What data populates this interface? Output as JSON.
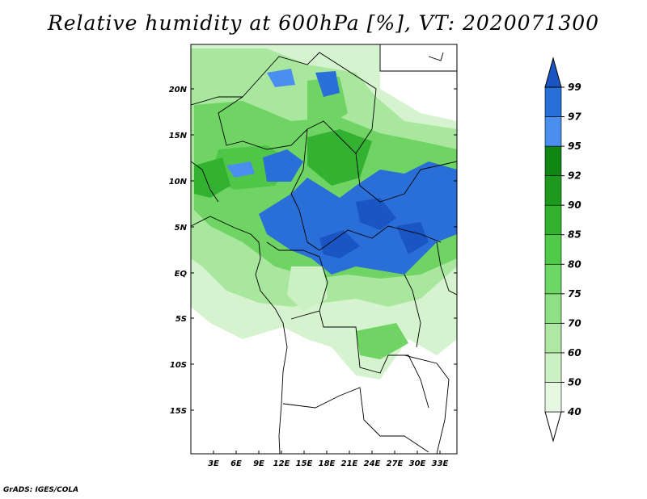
{
  "title": "Relative humidity at 600hPa [%], VT: 2020071300",
  "credit": "GrADS: IGES/COLA",
  "map": {
    "lat_labels": [
      "20N",
      "15N",
      "10N",
      "5N",
      "EQ",
      "5S",
      "10S",
      "15S"
    ],
    "lon_labels": [
      "3E",
      "6E",
      "9E",
      "12E",
      "15E",
      "18E",
      "21E",
      "24E",
      "27E",
      "30E",
      "33E"
    ]
  },
  "colorbar": {
    "levels": [
      "40",
      "50",
      "60",
      "70",
      "75",
      "80",
      "85",
      "90",
      "92",
      "95",
      "97",
      "99"
    ],
    "colors": [
      "#ffffff",
      "#e6f7e2",
      "#cbf0c4",
      "#aee8a4",
      "#8ee084",
      "#6ed766",
      "#4fca49",
      "#33b232",
      "#1d9a1d",
      "#0f8512",
      "#4a8ff0",
      "#2a6ed8",
      "#1a55c4"
    ]
  }
}
